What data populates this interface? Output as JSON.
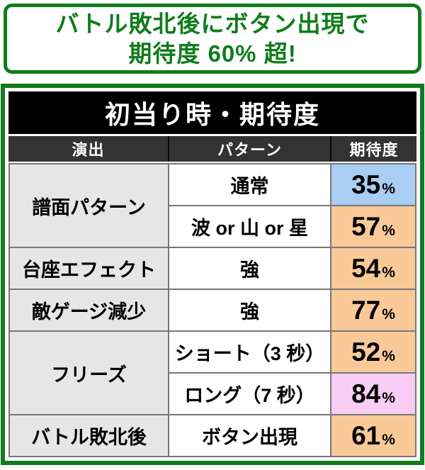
{
  "banner": {
    "line1": "バトル敗北後にボタン出現で",
    "line2": "期待度 60% 超!"
  },
  "table": {
    "title": "初当り時・期待度",
    "columns": [
      "演出",
      "パターン",
      "期待度"
    ],
    "percent_sign": "%",
    "rows": [
      {
        "effect": "譜面パターン",
        "pattern": "通常",
        "value": "35",
        "color": "blue"
      },
      {
        "pattern": "波 or 山 or 星",
        "value": "57",
        "color": "orange"
      },
      {
        "effect": "台座エフェクト",
        "pattern": "強",
        "value": "54",
        "color": "orange"
      },
      {
        "effect": "敵ゲージ減少",
        "pattern": "強",
        "value": "77",
        "color": "orange"
      },
      {
        "effect": "フリーズ",
        "pattern": "ショート（3 秒）",
        "value": "52",
        "color": "orange"
      },
      {
        "pattern": "ロング（7 秒）",
        "value": "84",
        "color": "pink"
      },
      {
        "effect": "バトル敗北後",
        "pattern": "ボタン出現",
        "value": "61",
        "color": "orange"
      }
    ]
  },
  "chart_data": {
    "type": "table",
    "title": "初当り時・期待度",
    "columns": [
      "演出",
      "パターン",
      "期待度"
    ],
    "rows": [
      [
        "譜面パターン",
        "通常",
        "35%"
      ],
      [
        "譜面パターン",
        "波 or 山 or 星",
        "57%"
      ],
      [
        "台座エフェクト",
        "強",
        "54%"
      ],
      [
        "敵ゲージ減少",
        "強",
        "77%"
      ],
      [
        "フリーズ",
        "ショート（3 秒）",
        "52%"
      ],
      [
        "フリーズ",
        "ロング（7 秒）",
        "84%"
      ],
      [
        "バトル敗北後",
        "ボタン出現",
        "61%"
      ]
    ],
    "header_note": "バトル敗北後にボタン出現で期待度 60% 超!"
  },
  "colors": {
    "green": "#107c1c",
    "title_bg": "#000000",
    "header_bg": "#333333",
    "header_divider": "#0a0a0a",
    "line": "#777777",
    "effect_bg": "#e6e6e6",
    "blue": "#a9cdf3",
    "orange": "#f9c998",
    "pink": "#f8cdf3",
    "text": "#000000"
  }
}
